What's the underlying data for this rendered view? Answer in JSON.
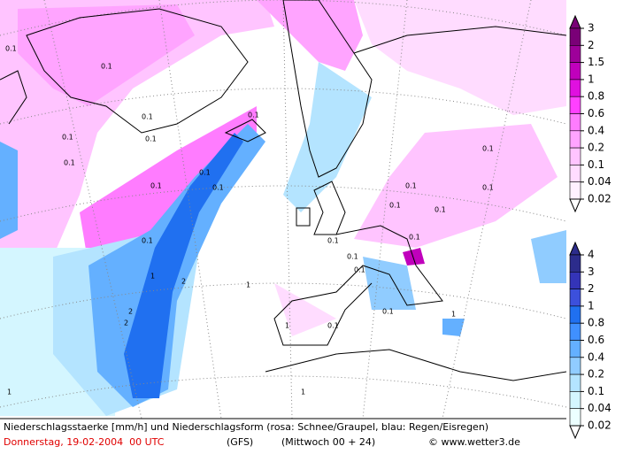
{
  "map": {
    "contour_labels": [
      "0.1",
      "0.1",
      "0.1",
      "0.1",
      "0.1",
      "0.1",
      "0.1",
      "0.1",
      "0.1",
      "0.1",
      "0.1",
      "0.1",
      "0.1",
      "0.1",
      "0.1",
      "0.1",
      "0.1",
      "0.1",
      "0.1",
      "0.1",
      "0.1",
      "0.1",
      "1",
      "1",
      "1",
      "2",
      "2",
      "2",
      "1",
      "1",
      "1"
    ]
  },
  "legend_snow": {
    "ticks": [
      3,
      2,
      1.5,
      1,
      0.8,
      0.6,
      0.4,
      0.2,
      0.1,
      0.04,
      0.02
    ],
    "colors": [
      "#7a0077",
      "#9e009a",
      "#c000bc",
      "#e010e0",
      "#ff40ff",
      "#ff7cff",
      "#ffa4ff",
      "#ffc4ff",
      "#ffdcff",
      "#fff0ff"
    ]
  },
  "legend_rain": {
    "ticks": [
      4,
      3,
      2,
      1,
      0.8,
      0.6,
      0.4,
      0.2,
      0.1,
      0.04,
      0.02
    ],
    "colors": [
      "#2c2c8c",
      "#3434b8",
      "#3c50dc",
      "#2070f0",
      "#4090ff",
      "#64b0ff",
      "#90ccff",
      "#b4e4ff",
      "#d4f6ff",
      "#ecffff"
    ]
  },
  "caption": {
    "line1": "Niederschlagsstaerke [mm/h] und Niederschlagsform (rosa: Schnee/Graupel, blau: Regen/Eisregen)",
    "date": "Donnerstag, 19-02-2004  00 UTC",
    "model": "(GFS)",
    "run": "(Mittwoch 00 + 24)",
    "copyright": "© www.wetter3.de"
  }
}
